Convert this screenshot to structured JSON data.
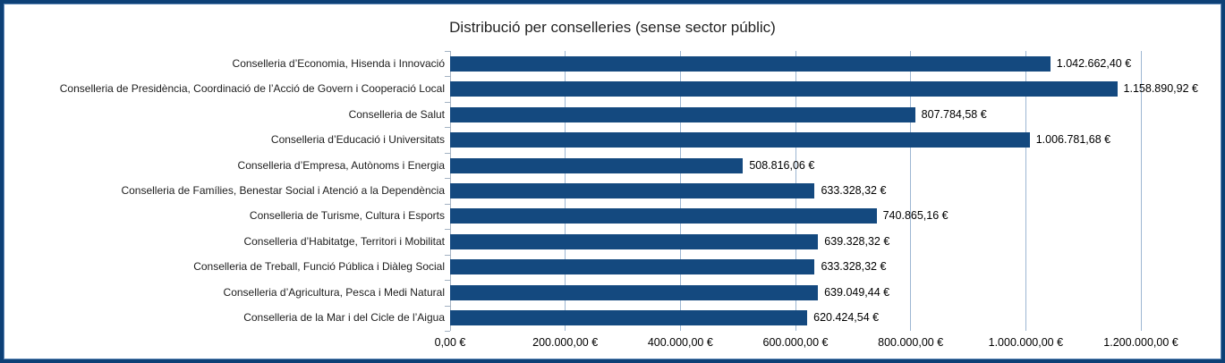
{
  "frame": {
    "outer_border_color": "#0d4076",
    "inner_border_color": "#5f88b8"
  },
  "chart_data": {
    "type": "bar",
    "orientation": "horizontal",
    "title": "Distribució per conselleries (sense sector públic)",
    "categories": [
      "Conselleria d’Economia, Hisenda i Innovació",
      "Conselleria de Presidència, Coordinació de l’Acció de Govern i Cooperació Local",
      "Conselleria de Salut",
      "Conselleria d’Educació i Universitats",
      "Conselleria d’Empresa, Autònoms i Energia",
      "Conselleria de Famílies, Benestar Social i Atenció a la Dependència",
      "Conselleria de Turisme, Cultura i Esports",
      "Conselleria d’Habitatge, Territori i Mobilitat",
      "Conselleria de Treball, Funció Pública i Diàleg Social",
      "Conselleria d’Agricultura, Pesca i Medi Natural",
      "Conselleria de la Mar i del Cicle de l’Aigua"
    ],
    "values": [
      1042662.4,
      1158890.92,
      807784.58,
      1006781.68,
      508816.06,
      633328.32,
      740865.16,
      639328.32,
      633328.32,
      639049.44,
      620424.54
    ],
    "value_labels": [
      "1.042.662,40 €",
      "1.158.890,92 €",
      "807.784,58 €",
      "1.006.781,68 €",
      "508.816,06 €",
      "633.328,32 €",
      "740.865,16 €",
      "639.328,32 €",
      "633.328,32 €",
      "639.049,44 €",
      "620.424,54 €"
    ],
    "x_tick_labels": [
      "0,00 €",
      "200.000,00 €",
      "400.000,00 €",
      "600.000,00 €",
      "800.000,00 €",
      "1.000.000,00 €",
      "1.200.000,00 €"
    ],
    "xlim": [
      0,
      1200000
    ],
    "xlabel": "",
    "ylabel": "",
    "grid": true,
    "legend": "none",
    "bar_color": "#14497f",
    "grid_color": "#9db6d2",
    "axis_color": "#a3b2c2"
  }
}
